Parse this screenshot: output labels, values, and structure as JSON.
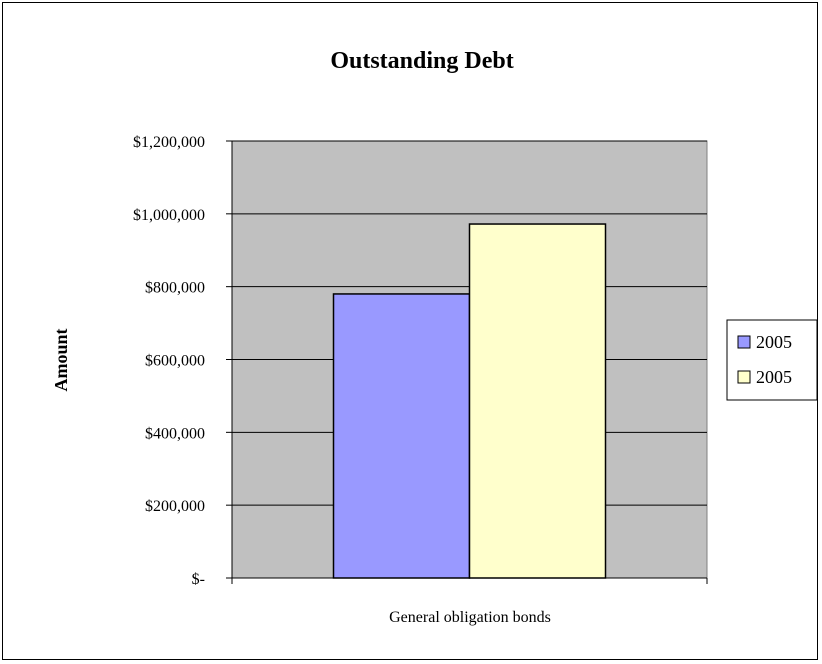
{
  "chart_data": {
    "type": "bar",
    "title": "Outstanding Debt",
    "xlabel": "",
    "ylabel": "Amount",
    "categories": [
      "General obligation bonds"
    ],
    "series": [
      {
        "name": "2005",
        "values": [
          780000
        ],
        "color": "#9999FF"
      },
      {
        "name": "2005",
        "values": [
          972000
        ],
        "color": "#FFFFCC"
      }
    ],
    "ylim": [
      0,
      1200000
    ],
    "y_ticks": [
      0,
      200000,
      400000,
      600000,
      800000,
      1000000,
      1200000
    ],
    "y_tick_labels": [
      "$-",
      "$200,000",
      "$400,000",
      "$600,000",
      "$800,000",
      "$1,000,000",
      "$1,200,000"
    ],
    "plot_background": "#C0C0C0",
    "grid": true,
    "legend_position": "right"
  }
}
